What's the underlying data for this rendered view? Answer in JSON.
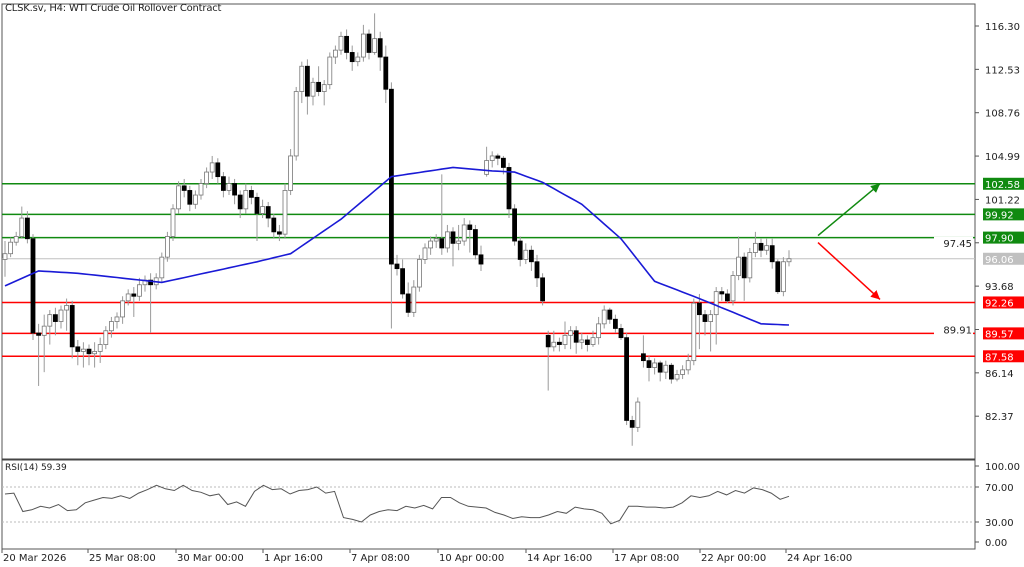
{
  "header": {
    "title": "CLSK.sv, H4:  WTI Crude Oil Rollover Contract"
  },
  "rsi": {
    "title": "RSI(14) 59.39"
  },
  "chart_data": [
    {
      "type": "candlestick",
      "title": "CLSK.sv, H4:  WTI Crude Oil Rollover Contract",
      "ylim": [
        79.5,
        118.0
      ],
      "y_ticks": [
        "116.30",
        "112.53",
        "108.76",
        "104.99",
        "101.22",
        "97.45",
        "93.68",
        "89.91",
        "86.14",
        "82.37"
      ],
      "x_ticks": [
        "20 Mar 2026",
        "25 Mar 08:00",
        "30 Mar 00:00",
        "1 Apr 16:00",
        "7 Apr 08:00",
        "10 Apr 00:00",
        "14 Apr 16:00",
        "17 Apr 08:00",
        "22 Apr 00:00",
        "24 Apr 16:00"
      ],
      "grid": false,
      "colors": {
        "bull_fill": "#ffffff",
        "bear_fill": "#000000",
        "wick": "#9a9a9a",
        "ma": "#1a1ad6",
        "support": "#ff0000",
        "resistance": "#108a10",
        "current": "#c0c0c0"
      },
      "levels": [
        {
          "value": "102.58",
          "kind": "resistance"
        },
        {
          "value": "99.92",
          "kind": "resistance"
        },
        {
          "value": "97.90",
          "kind": "resistance"
        },
        {
          "value": "96.06",
          "kind": "current"
        },
        {
          "value": "92.26",
          "kind": "support"
        },
        {
          "value": "89.57",
          "kind": "support"
        },
        {
          "value": "87.58",
          "kind": "support"
        }
      ],
      "arrows": [
        {
          "direction": "up",
          "color": "#108a10"
        },
        {
          "direction": "down",
          "color": "#ff0000"
        }
      ],
      "candles_ohlc": [
        [
          96.0,
          97.6,
          94.5,
          96.5
        ],
        [
          96.5,
          97.9,
          96.2,
          97.5
        ],
        [
          97.5,
          98.4,
          97.2,
          98.0
        ],
        [
          98.0,
          100.6,
          97.8,
          99.6
        ],
        [
          99.6,
          100.2,
          97.4,
          97.8
        ],
        [
          97.8,
          98.2,
          89.0,
          89.6
        ],
        [
          89.6,
          90.4,
          85.0,
          89.4
        ],
        [
          89.4,
          91.2,
          86.2,
          90.2
        ],
        [
          90.2,
          91.6,
          88.6,
          91.2
        ],
        [
          91.2,
          91.8,
          89.4,
          90.6
        ],
        [
          90.6,
          92.0,
          90.0,
          91.6
        ],
        [
          91.6,
          92.6,
          89.8,
          92.0
        ],
        [
          92.0,
          92.4,
          87.4,
          88.4
        ],
        [
          88.4,
          89.0,
          86.8,
          88.0
        ],
        [
          88.0,
          88.8,
          86.6,
          88.2
        ],
        [
          88.2,
          88.6,
          86.8,
          87.8
        ],
        [
          87.8,
          88.8,
          86.6,
          88.0
        ],
        [
          88.0,
          89.2,
          87.0,
          88.6
        ],
        [
          88.6,
          90.2,
          88.2,
          89.8
        ],
        [
          89.8,
          91.0,
          89.2,
          90.6
        ],
        [
          90.6,
          91.4,
          90.0,
          91.0
        ],
        [
          91.0,
          92.8,
          90.4,
          92.4
        ],
        [
          92.4,
          93.4,
          92.0,
          93.0
        ],
        [
          93.0,
          93.6,
          91.0,
          92.8
        ],
        [
          92.8,
          94.4,
          92.4,
          93.8
        ],
        [
          93.8,
          94.6,
          93.2,
          94.2
        ],
        [
          94.2,
          94.8,
          89.6,
          93.8
        ],
        [
          93.8,
          94.8,
          93.4,
          94.4
        ],
        [
          94.4,
          96.6,
          94.0,
          96.2
        ],
        [
          96.2,
          98.4,
          95.8,
          98.0
        ],
        [
          98.0,
          100.8,
          97.6,
          100.4
        ],
        [
          100.4,
          102.8,
          100.0,
          102.4
        ],
        [
          102.4,
          103.0,
          101.4,
          102.0
        ],
        [
          102.0,
          102.4,
          100.2,
          100.8
        ],
        [
          100.8,
          102.0,
          100.4,
          101.6
        ],
        [
          101.6,
          103.0,
          101.2,
          102.6
        ],
        [
          102.6,
          104.0,
          102.2,
          103.6
        ],
        [
          103.6,
          105.0,
          103.0,
          104.4
        ],
        [
          104.4,
          104.8,
          102.6,
          103.2
        ],
        [
          103.2,
          103.6,
          101.4,
          102.0
        ],
        [
          102.0,
          103.2,
          101.6,
          102.6
        ],
        [
          102.6,
          103.0,
          100.8,
          101.6
        ],
        [
          101.6,
          102.0,
          99.6,
          100.4
        ],
        [
          100.4,
          102.6,
          100.0,
          102.0
        ],
        [
          102.0,
          102.4,
          100.8,
          101.4
        ],
        [
          101.4,
          101.8,
          97.6,
          100.0
        ],
        [
          100.0,
          101.2,
          99.6,
          100.6
        ],
        [
          100.6,
          101.0,
          98.8,
          99.6
        ],
        [
          99.6,
          100.0,
          97.8,
          98.4
        ],
        [
          98.4,
          99.0,
          97.6,
          98.2
        ],
        [
          98.2,
          102.6,
          97.8,
          102.0
        ],
        [
          102.0,
          105.6,
          101.6,
          105.0
        ],
        [
          105.0,
          111.0,
          104.6,
          110.6
        ],
        [
          110.6,
          113.2,
          109.6,
          112.8
        ],
        [
          112.8,
          113.4,
          108.6,
          110.2
        ],
        [
          110.2,
          111.8,
          109.4,
          111.4
        ],
        [
          111.4,
          112.8,
          110.2,
          110.6
        ],
        [
          110.6,
          111.6,
          109.4,
          111.2
        ],
        [
          111.2,
          114.0,
          110.8,
          113.6
        ],
        [
          113.6,
          114.6,
          113.0,
          114.2
        ],
        [
          114.2,
          115.8,
          113.8,
          115.4
        ],
        [
          115.4,
          116.0,
          113.4,
          114.0
        ],
        [
          114.0,
          114.6,
          112.4,
          113.2
        ],
        [
          113.2,
          114.0,
          112.8,
          113.6
        ],
        [
          113.6,
          116.4,
          113.2,
          115.6
        ],
        [
          115.6,
          116.0,
          113.4,
          114.0
        ],
        [
          114.0,
          117.4,
          113.8,
          115.2
        ],
        [
          115.2,
          115.8,
          112.4,
          113.6
        ],
        [
          113.6,
          114.6,
          109.6,
          110.8
        ],
        [
          110.8,
          111.4,
          90.0,
          95.6
        ],
        [
          95.6,
          96.4,
          94.6,
          95.2
        ],
        [
          95.2,
          96.0,
          92.6,
          93.0
        ],
        [
          93.0,
          94.0,
          91.0,
          91.4
        ],
        [
          91.4,
          94.2,
          91.0,
          93.6
        ],
        [
          93.6,
          96.4,
          93.2,
          96.0
        ],
        [
          96.0,
          97.4,
          95.6,
          97.0
        ],
        [
          97.0,
          98.0,
          96.4,
          97.6
        ],
        [
          97.6,
          98.2,
          97.0,
          97.8
        ],
        [
          97.8,
          103.4,
          96.4,
          97.0
        ],
        [
          97.0,
          99.0,
          96.6,
          98.4
        ],
        [
          98.4,
          98.8,
          95.4,
          97.4
        ],
        [
          97.4,
          99.0,
          96.8,
          97.6
        ],
        [
          97.6,
          99.6,
          97.2,
          99.0
        ],
        [
          99.0,
          99.4,
          96.6,
          98.6
        ],
        [
          98.6,
          99.0,
          96.0,
          96.4
        ],
        [
          96.4,
          97.2,
          95.0,
          95.6
        ],
        [
          103.4,
          105.8,
          103.2,
          104.6
        ],
        [
          104.6,
          105.4,
          104.0,
          105.0
        ],
        [
          105.0,
          105.2,
          104.2,
          104.8
        ],
        [
          104.8,
          105.0,
          103.4,
          104.0
        ],
        [
          104.0,
          104.4,
          99.6,
          100.4
        ],
        [
          100.4,
          100.8,
          97.2,
          97.6
        ],
        [
          97.6,
          98.0,
          95.4,
          96.0
        ],
        [
          96.0,
          97.4,
          95.6,
          96.8
        ],
        [
          96.8,
          97.2,
          95.0,
          95.8
        ],
        [
          95.8,
          96.4,
          93.6,
          94.4
        ],
        [
          94.4,
          94.8,
          92.0,
          92.4
        ],
        [
          89.4,
          89.8,
          84.6,
          88.4
        ],
        [
          88.4,
          89.8,
          88.0,
          88.8
        ],
        [
          88.8,
          89.2,
          88.0,
          88.6
        ],
        [
          88.6,
          90.6,
          88.2,
          89.4
        ],
        [
          89.4,
          90.2,
          88.2,
          89.8
        ],
        [
          89.8,
          90.2,
          87.8,
          88.8
        ],
        [
          88.8,
          89.6,
          88.2,
          89.0
        ],
        [
          89.0,
          89.4,
          88.0,
          88.6
        ],
        [
          88.6,
          89.8,
          88.4,
          89.2
        ],
        [
          89.2,
          91.0,
          88.6,
          90.4
        ],
        [
          90.4,
          92.0,
          90.0,
          91.6
        ],
        [
          91.6,
          91.8,
          90.4,
          90.8
        ],
        [
          90.8,
          91.2,
          89.6,
          90.0
        ],
        [
          90.0,
          90.4,
          89.0,
          89.2
        ],
        [
          89.2,
          89.6,
          81.6,
          82.0
        ],
        [
          82.0,
          82.4,
          79.8,
          81.4
        ],
        [
          81.4,
          84.0,
          81.0,
          83.6
        ],
        [
          87.8,
          89.4,
          86.6,
          87.2
        ],
        [
          87.2,
          87.6,
          85.4,
          86.6
        ],
        [
          86.6,
          87.4,
          86.0,
          87.0
        ],
        [
          87.0,
          87.2,
          85.4,
          86.2
        ],
        [
          86.2,
          87.2,
          85.6,
          86.8
        ],
        [
          86.8,
          87.0,
          85.2,
          85.6
        ],
        [
          85.6,
          86.4,
          85.4,
          86.0
        ],
        [
          86.0,
          86.8,
          85.6,
          86.4
        ],
        [
          86.4,
          87.8,
          86.0,
          87.2
        ],
        [
          87.2,
          92.6,
          86.8,
          92.2
        ],
        [
          92.2,
          93.0,
          88.2,
          91.2
        ],
        [
          91.2,
          91.6,
          89.4,
          90.6
        ],
        [
          90.6,
          91.6,
          88.0,
          91.2
        ],
        [
          91.2,
          93.6,
          88.6,
          93.2
        ],
        [
          93.2,
          93.6,
          92.4,
          93.0
        ],
        [
          93.0,
          93.4,
          92.2,
          92.4
        ],
        [
          92.4,
          95.0,
          92.0,
          94.6
        ],
        [
          94.6,
          98.0,
          94.2,
          96.2
        ],
        [
          96.2,
          96.6,
          92.4,
          94.4
        ],
        [
          94.4,
          97.0,
          94.0,
          96.6
        ],
        [
          96.6,
          98.4,
          96.2,
          97.4
        ],
        [
          97.4,
          97.8,
          96.2,
          96.8
        ],
        [
          96.8,
          97.8,
          96.4,
          97.2
        ],
        [
          97.2,
          97.8,
          95.2,
          95.8
        ],
        [
          95.8,
          96.0,
          93.0,
          93.2
        ],
        [
          93.2,
          96.2,
          92.8,
          95.8
        ],
        [
          95.8,
          96.8,
          95.4,
          96.06
        ]
      ],
      "moving_average": [
        [
          0,
          93.7
        ],
        [
          6,
          95.0
        ],
        [
          13,
          94.8
        ],
        [
          28,
          94.0
        ],
        [
          45,
          95.8
        ],
        [
          51,
          96.5
        ],
        [
          60,
          99.5
        ],
        [
          69,
          103.2
        ],
        [
          80,
          104.0
        ],
        [
          87,
          103.7
        ],
        [
          91,
          103.6
        ],
        [
          96,
          102.7
        ],
        [
          103,
          100.8
        ],
        [
          110,
          97.8
        ],
        [
          116,
          94.1
        ],
        [
          124,
          92.6
        ],
        [
          130,
          91.4
        ],
        [
          135,
          90.4
        ],
        [
          140,
          90.3
        ]
      ]
    },
    {
      "type": "line",
      "title": "RSI(14) 59.39",
      "ylim": [
        0,
        100
      ],
      "y_ticks": [
        "100.00",
        "70.00",
        "30.00",
        "0.00"
      ],
      "reference_lines": [
        70,
        30
      ],
      "values": [
        62,
        63,
        42,
        44,
        48,
        46,
        50,
        43,
        44,
        52,
        55,
        58,
        57,
        60,
        57,
        63,
        67,
        72,
        68,
        66,
        72,
        66,
        64,
        60,
        62,
        50,
        53,
        48,
        65,
        72,
        67,
        68,
        62,
        66,
        67,
        70,
        63,
        65,
        35,
        33,
        30,
        38,
        42,
        44,
        43,
        48,
        46,
        49,
        45,
        58,
        58,
        52,
        48,
        47,
        46,
        41,
        38,
        34,
        36,
        35,
        35,
        38,
        42,
        40,
        47,
        45,
        44,
        40,
        28,
        32,
        48,
        48,
        47,
        47,
        46,
        47,
        52,
        60,
        58,
        60,
        65,
        61,
        66,
        63,
        69,
        67,
        63,
        56,
        59.39
      ],
      "color": "#555555"
    }
  ]
}
